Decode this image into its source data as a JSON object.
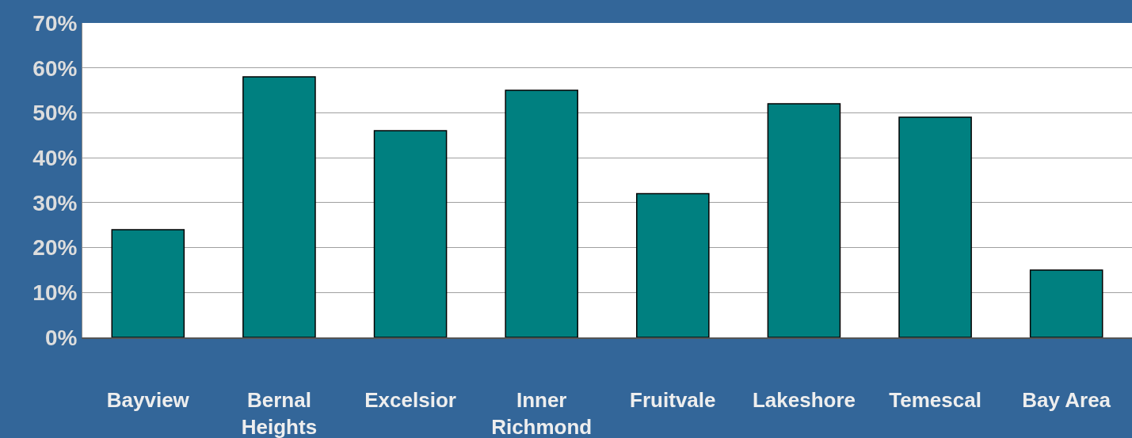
{
  "chart_data": {
    "type": "bar",
    "categories": [
      "Bayview",
      "Bernal Heights",
      "Excelsior",
      "Inner Richmond",
      "Fruitvale",
      "Lakeshore",
      "Temescal",
      "Bay Area"
    ],
    "values": [
      24,
      58,
      46,
      55,
      32,
      52,
      49,
      15
    ],
    "color": "#008080",
    "ylim": [
      0,
      70
    ],
    "yticks": [
      {
        "value": 0,
        "label": "0%"
      },
      {
        "value": 10,
        "label": "10%"
      },
      {
        "value": 20,
        "label": "20%"
      },
      {
        "value": 30,
        "label": "30%"
      },
      {
        "value": 40,
        "label": "40%"
      },
      {
        "value": 50,
        "label": "50%"
      },
      {
        "value": 60,
        "label": "60%"
      },
      {
        "value": 70,
        "label": "70%"
      }
    ],
    "grid": "y",
    "legend": false
  }
}
